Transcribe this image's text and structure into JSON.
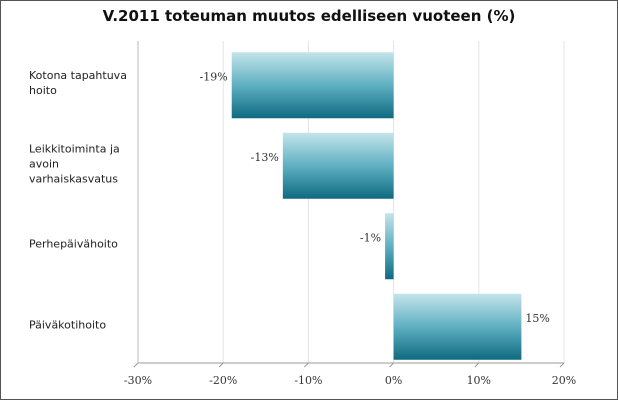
{
  "chart_data": {
    "type": "bar",
    "orientation": "horizontal",
    "title": "V.2011 toteuman muutos edelliseen vuoteen (%)",
    "categories": [
      "Kotona tapahtuva hoito",
      "Leikkitoiminta ja avoin varhaiskasvatus",
      "Perhepäivähoito",
      "Päiväkotihoito"
    ],
    "values": [
      -19,
      -13,
      -1,
      15
    ],
    "value_labels": [
      "-19%",
      "-13%",
      "-1%",
      "15%"
    ],
    "color": "#2a8aa0",
    "xlim": [
      -30,
      20
    ],
    "xticks": [
      {
        "value": -30,
        "label": "-30%"
      },
      {
        "value": -20,
        "label": "-20%"
      },
      {
        "value": -10,
        "label": "-10%"
      },
      {
        "value": 0,
        "label": "0%"
      },
      {
        "value": 10,
        "label": "10%"
      },
      {
        "value": 20,
        "label": "20%"
      }
    ],
    "grid": true
  }
}
